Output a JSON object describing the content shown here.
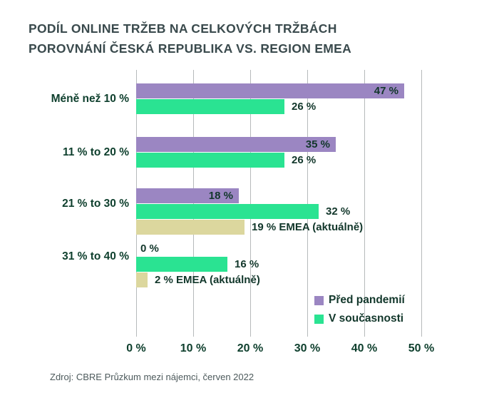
{
  "title": {
    "line1": "PODÍL ONLINE TRŽEB NA CELKOVÝCH TRŽBÁCH",
    "line2": "POROVNÁNÍ ČESKÁ REPUBLIKA VS. REGION EMEA"
  },
  "source": "Zdroj: CBRE Průzkum mezi nájemci, červen 2022",
  "colors": {
    "purple": "#9B86C2",
    "green": "#2AE392",
    "wheat": "#DCD79E"
  },
  "legend": [
    {
      "label": "Před pandemií",
      "color_key": "purple"
    },
    {
      "label": "V současnosti",
      "color_key": "green"
    }
  ],
  "x_axis": {
    "ticks": [
      "0 %",
      "10 %",
      "20 %",
      "30 %",
      "40 %",
      "50 %"
    ],
    "min": 0,
    "max": 50
  },
  "chart_data": {
    "type": "bar",
    "orientation": "horizontal",
    "title": "PODÍL ONLINE TRŽEB NA CELKOVÝCH TRŽBÁCH POROVNÁNÍ ČESKÁ REPUBLIKA VS. REGION EMEA",
    "categories": [
      "Méně než 10 %",
      "11 % to 20 %",
      "21 % to 30 %",
      "31 % to 40 %"
    ],
    "series": [
      {
        "name": "Před pandemií",
        "color_key": "purple",
        "label_inside": true,
        "values": [
          47,
          35,
          18,
          0
        ],
        "labels": [
          "47 %",
          "35 %",
          "18 %",
          "0 %"
        ]
      },
      {
        "name": "V současnosti",
        "color_key": "green",
        "label_inside": false,
        "values": [
          26,
          26,
          32,
          16
        ],
        "labels": [
          "26 %",
          "26 %",
          "32 %",
          "16 %"
        ]
      },
      {
        "name": "EMEA (aktuálně)",
        "color_key": "wheat",
        "label_inside": false,
        "values": [
          null,
          null,
          19,
          2
        ],
        "labels": [
          null,
          null,
          "19 % EMEA (aktuálně)",
          "2 % EMEA (aktuálně)"
        ]
      }
    ],
    "xlim": [
      0,
      50
    ],
    "grid": true,
    "legend_position": "inside-bottom-right"
  }
}
